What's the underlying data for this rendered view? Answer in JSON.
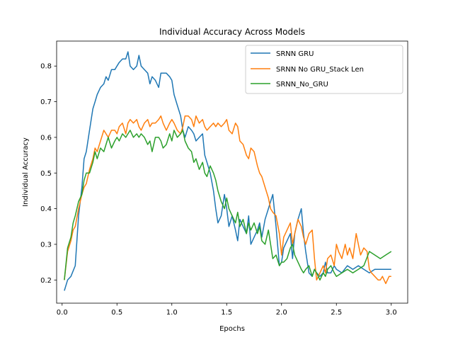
{
  "chart_data": {
    "type": "line",
    "title": "Individual Accuracy Across Models",
    "xlabel": "Epochs",
    "ylabel": "Individual Accuracy",
    "xlim": [
      -0.05,
      3.15
    ],
    "ylim": [
      0.135,
      0.87
    ],
    "xticks": [
      0.0,
      0.5,
      1.0,
      1.5,
      2.0,
      2.5,
      3.0
    ],
    "xtick_labels": [
      "0.0",
      "0.5",
      "1.0",
      "1.5",
      "2.0",
      "2.5",
      "3.0"
    ],
    "yticks": [
      0.2,
      0.3,
      0.4,
      0.5,
      0.6,
      0.7,
      0.8
    ],
    "ytick_labels": [
      "0.2",
      "0.3",
      "0.4",
      "0.5",
      "0.6",
      "0.7",
      "0.8"
    ],
    "grid": false,
    "legend_position": "top-right",
    "series": [
      {
        "name": "SRNN GRU",
        "color": "#1f77b4",
        "x": [
          0.02,
          0.05,
          0.08,
          0.12,
          0.15,
          0.18,
          0.2,
          0.22,
          0.25,
          0.28,
          0.3,
          0.32,
          0.35,
          0.38,
          0.4,
          0.42,
          0.45,
          0.48,
          0.5,
          0.52,
          0.55,
          0.58,
          0.6,
          0.62,
          0.65,
          0.68,
          0.7,
          0.72,
          0.75,
          0.78,
          0.8,
          0.82,
          0.85,
          0.88,
          0.9,
          0.92,
          0.95,
          0.98,
          1.0,
          1.02,
          1.05,
          1.08,
          1.1,
          1.12,
          1.15,
          1.18,
          1.2,
          1.22,
          1.25,
          1.28,
          1.3,
          1.32,
          1.35,
          1.38,
          1.4,
          1.42,
          1.45,
          1.48,
          1.5,
          1.52,
          1.55,
          1.58,
          1.6,
          1.62,
          1.65,
          1.68,
          1.7,
          1.72,
          1.75,
          1.78,
          1.8,
          1.82,
          1.85,
          1.88,
          1.9,
          1.92,
          1.95,
          1.98,
          2.0,
          2.02,
          2.05,
          2.08,
          2.1,
          2.12,
          2.15,
          2.18,
          2.2,
          2.22,
          2.25,
          2.28,
          2.3,
          2.32,
          2.35,
          2.38,
          2.4,
          2.42,
          2.45,
          2.48,
          2.5,
          2.55,
          2.6,
          2.65,
          2.7,
          2.75,
          2.8,
          2.85,
          2.9,
          2.95,
          3.0
        ],
        "y": [
          0.17,
          0.2,
          0.21,
          0.24,
          0.38,
          0.46,
          0.54,
          0.56,
          0.62,
          0.68,
          0.7,
          0.72,
          0.74,
          0.75,
          0.77,
          0.76,
          0.79,
          0.79,
          0.8,
          0.81,
          0.82,
          0.82,
          0.84,
          0.8,
          0.79,
          0.8,
          0.83,
          0.8,
          0.79,
          0.78,
          0.75,
          0.77,
          0.76,
          0.74,
          0.78,
          0.78,
          0.78,
          0.77,
          0.76,
          0.72,
          0.69,
          0.66,
          0.62,
          0.6,
          0.63,
          0.62,
          0.61,
          0.59,
          0.6,
          0.61,
          0.55,
          0.53,
          0.5,
          0.45,
          0.4,
          0.36,
          0.38,
          0.44,
          0.4,
          0.35,
          0.38,
          0.34,
          0.31,
          0.37,
          0.35,
          0.33,
          0.38,
          0.3,
          0.32,
          0.34,
          0.36,
          0.32,
          0.37,
          0.4,
          0.42,
          0.44,
          0.35,
          0.24,
          0.25,
          0.29,
          0.31,
          0.33,
          0.26,
          0.33,
          0.37,
          0.4,
          0.33,
          0.28,
          0.22,
          0.21,
          0.23,
          0.22,
          0.21,
          0.22,
          0.25,
          0.22,
          0.22,
          0.24,
          0.23,
          0.22,
          0.24,
          0.23,
          0.24,
          0.23,
          0.22,
          0.23,
          0.23,
          0.23,
          0.23
        ]
      },
      {
        "name": "SRNN No GRU_Stack Len",
        "color": "#ff7f0e",
        "x": [
          0.02,
          0.05,
          0.08,
          0.1,
          0.12,
          0.15,
          0.18,
          0.2,
          0.22,
          0.25,
          0.28,
          0.3,
          0.32,
          0.35,
          0.38,
          0.4,
          0.42,
          0.45,
          0.48,
          0.5,
          0.52,
          0.55,
          0.58,
          0.6,
          0.62,
          0.65,
          0.68,
          0.7,
          0.72,
          0.75,
          0.78,
          0.8,
          0.82,
          0.85,
          0.88,
          0.9,
          0.92,
          0.95,
          0.98,
          1.0,
          1.02,
          1.05,
          1.08,
          1.1,
          1.12,
          1.15,
          1.18,
          1.2,
          1.22,
          1.25,
          1.28,
          1.3,
          1.32,
          1.35,
          1.38,
          1.4,
          1.42,
          1.45,
          1.48,
          1.5,
          1.52,
          1.55,
          1.58,
          1.6,
          1.62,
          1.65,
          1.68,
          1.7,
          1.72,
          1.75,
          1.78,
          1.8,
          1.82,
          1.85,
          1.88,
          1.9,
          1.92,
          1.95,
          1.98,
          2.0,
          2.02,
          2.05,
          2.08,
          2.1,
          2.12,
          2.15,
          2.18,
          2.2,
          2.22,
          2.25,
          2.28,
          2.3,
          2.32,
          2.35,
          2.38,
          2.4,
          2.42,
          2.45,
          2.48,
          2.5,
          2.52,
          2.55,
          2.58,
          2.6,
          2.62,
          2.65,
          2.68,
          2.7,
          2.72,
          2.75,
          2.78,
          2.8,
          2.82,
          2.85,
          2.88,
          2.9,
          2.92,
          2.95,
          2.98,
          3.0
        ],
        "y": [
          0.2,
          0.28,
          0.31,
          0.34,
          0.35,
          0.4,
          0.44,
          0.46,
          0.47,
          0.51,
          0.54,
          0.57,
          0.56,
          0.59,
          0.62,
          0.61,
          0.6,
          0.62,
          0.62,
          0.61,
          0.63,
          0.64,
          0.61,
          0.64,
          0.65,
          0.64,
          0.65,
          0.63,
          0.62,
          0.64,
          0.65,
          0.63,
          0.64,
          0.64,
          0.65,
          0.66,
          0.64,
          0.62,
          0.64,
          0.65,
          0.64,
          0.62,
          0.61,
          0.63,
          0.66,
          0.66,
          0.65,
          0.63,
          0.66,
          0.64,
          0.65,
          0.63,
          0.62,
          0.63,
          0.64,
          0.63,
          0.64,
          0.63,
          0.64,
          0.65,
          0.62,
          0.61,
          0.64,
          0.63,
          0.59,
          0.58,
          0.55,
          0.54,
          0.57,
          0.56,
          0.52,
          0.5,
          0.49,
          0.46,
          0.43,
          0.4,
          0.39,
          0.38,
          0.33,
          0.27,
          0.32,
          0.34,
          0.36,
          0.3,
          0.33,
          0.37,
          0.35,
          0.32,
          0.3,
          0.33,
          0.34,
          0.26,
          0.2,
          0.22,
          0.24,
          0.22,
          0.26,
          0.27,
          0.24,
          0.3,
          0.28,
          0.26,
          0.3,
          0.27,
          0.29,
          0.26,
          0.33,
          0.3,
          0.27,
          0.29,
          0.28,
          0.23,
          0.22,
          0.21,
          0.2,
          0.2,
          0.21,
          0.19,
          0.21,
          0.21
        ]
      },
      {
        "name": "SRNN_No_GRU",
        "color": "#2ca02c",
        "x": [
          0.02,
          0.05,
          0.08,
          0.1,
          0.12,
          0.15,
          0.18,
          0.2,
          0.22,
          0.25,
          0.28,
          0.3,
          0.32,
          0.35,
          0.38,
          0.4,
          0.42,
          0.45,
          0.48,
          0.5,
          0.52,
          0.55,
          0.58,
          0.6,
          0.62,
          0.65,
          0.68,
          0.7,
          0.72,
          0.75,
          0.78,
          0.8,
          0.82,
          0.85,
          0.88,
          0.9,
          0.92,
          0.95,
          0.98,
          1.0,
          1.02,
          1.05,
          1.08,
          1.1,
          1.12,
          1.15,
          1.18,
          1.2,
          1.22,
          1.25,
          1.28,
          1.3,
          1.32,
          1.35,
          1.38,
          1.4,
          1.42,
          1.45,
          1.48,
          1.5,
          1.52,
          1.55,
          1.58,
          1.6,
          1.62,
          1.65,
          1.68,
          1.7,
          1.72,
          1.75,
          1.78,
          1.8,
          1.82,
          1.85,
          1.88,
          1.9,
          1.92,
          1.95,
          1.98,
          2.0,
          2.02,
          2.05,
          2.08,
          2.1,
          2.12,
          2.15,
          2.18,
          2.2,
          2.22,
          2.25,
          2.28,
          2.3,
          2.32,
          2.35,
          2.38,
          2.4,
          2.42,
          2.45,
          2.48,
          2.5,
          2.55,
          2.6,
          2.65,
          2.7,
          2.75,
          2.8,
          2.85,
          2.9,
          2.95,
          3.0
        ],
        "y": [
          0.2,
          0.29,
          0.32,
          0.36,
          0.38,
          0.42,
          0.44,
          0.48,
          0.5,
          0.5,
          0.53,
          0.56,
          0.54,
          0.57,
          0.56,
          0.58,
          0.6,
          0.57,
          0.59,
          0.6,
          0.59,
          0.61,
          0.6,
          0.61,
          0.62,
          0.6,
          0.61,
          0.6,
          0.61,
          0.6,
          0.58,
          0.59,
          0.56,
          0.6,
          0.6,
          0.59,
          0.57,
          0.58,
          0.61,
          0.59,
          0.62,
          0.6,
          0.61,
          0.62,
          0.59,
          0.57,
          0.56,
          0.53,
          0.54,
          0.51,
          0.53,
          0.5,
          0.49,
          0.52,
          0.5,
          0.48,
          0.45,
          0.42,
          0.4,
          0.43,
          0.4,
          0.38,
          0.36,
          0.39,
          0.35,
          0.37,
          0.33,
          0.36,
          0.34,
          0.36,
          0.33,
          0.35,
          0.31,
          0.3,
          0.34,
          0.3,
          0.26,
          0.27,
          0.24,
          0.25,
          0.25,
          0.26,
          0.29,
          0.3,
          0.27,
          0.25,
          0.23,
          0.22,
          0.23,
          0.24,
          0.21,
          0.23,
          0.22,
          0.2,
          0.22,
          0.21,
          0.23,
          0.24,
          0.22,
          0.21,
          0.22,
          0.23,
          0.22,
          0.23,
          0.24,
          0.28,
          0.27,
          0.26,
          0.27,
          0.28
        ]
      }
    ]
  }
}
